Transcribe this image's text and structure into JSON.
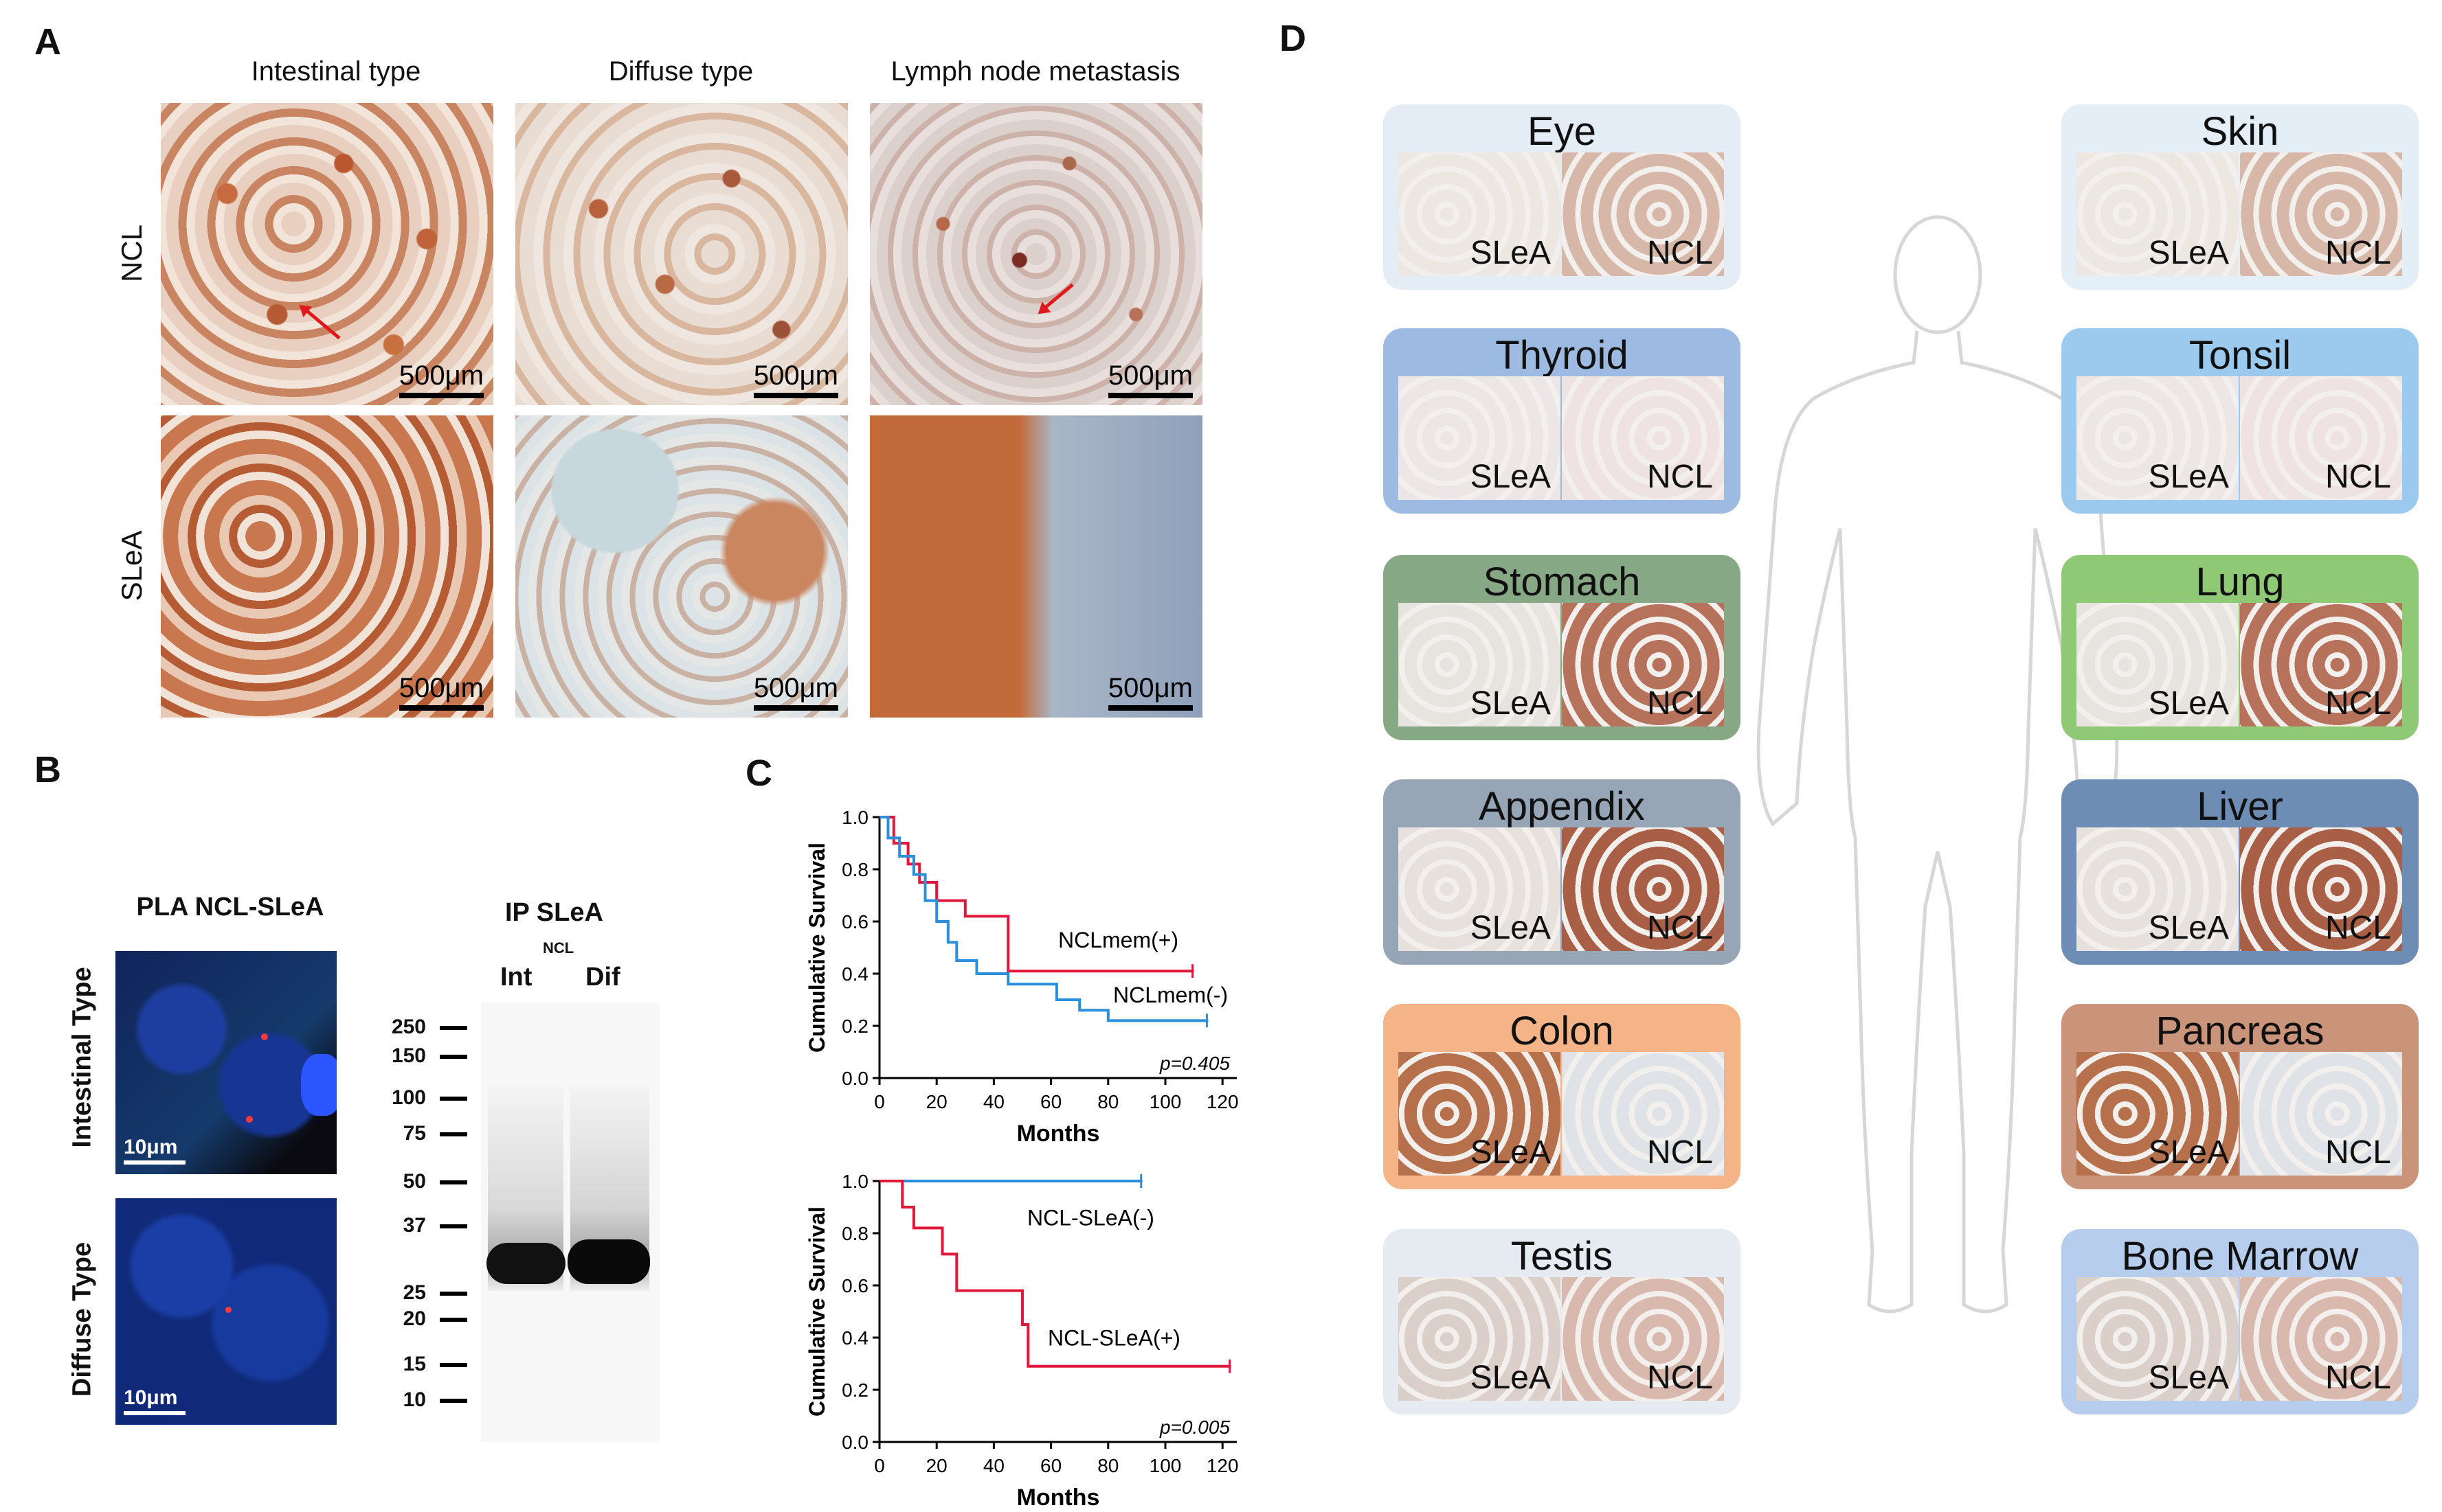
{
  "panelA": {
    "letter": "A",
    "columns": [
      "Intestinal type",
      "Diffuse type",
      "Lymph node metastasis"
    ],
    "rows": [
      "NCL",
      "SLeA"
    ],
    "scale_label": "500μm"
  },
  "panelB": {
    "letter": "B",
    "pla_title": "PLA NCL-SLeA",
    "rows": [
      "Intestinal Type",
      "Diffuse Type"
    ],
    "fluor_scale": "10μm",
    "ip_title": "IP SLeA",
    "ip_sub": "NCL",
    "lanes": [
      "Int",
      "Dif"
    ],
    "markers": [
      "250",
      "150",
      "100",
      "75",
      "50",
      "37",
      "25",
      "20",
      "15",
      "10"
    ]
  },
  "panelC": {
    "letter": "C",
    "chart_data": [
      {
        "type": "line",
        "xlabel": "Months",
        "ylabel": "Cumulative Survival",
        "xticks": [
          0,
          20,
          40,
          60,
          80,
          100,
          120
        ],
        "yticks": [
          "0.0",
          "0.2",
          "0.4",
          "0.6",
          "0.8",
          "1.0"
        ],
        "xlim": [
          0,
          125
        ],
        "ylim": [
          0,
          1.0
        ],
        "pvalue": "p=0.405",
        "series": [
          {
            "name": "NCLmem(+)",
            "color": "#e0193c",
            "x": [
              0,
              5,
              5,
              10,
              10,
              14,
              14,
              20,
              20,
              30,
              30,
              45,
              45,
              110
            ],
            "y": [
              1.0,
              1.0,
              0.9,
              0.9,
              0.82,
              0.82,
              0.75,
              0.75,
              0.68,
              0.68,
              0.62,
              0.62,
              0.41,
              0.41
            ]
          },
          {
            "name": "NCLmem(-)",
            "color": "#2b8fdb",
            "x": [
              0,
              3,
              3,
              7,
              7,
              12,
              12,
              16,
              16,
              20,
              20,
              24,
              24,
              27,
              27,
              34,
              34,
              45,
              45,
              62,
              62,
              70,
              70,
              80,
              80,
              115
            ],
            "y": [
              1.0,
              1.0,
              0.92,
              0.92,
              0.85,
              0.85,
              0.78,
              0.78,
              0.68,
              0.68,
              0.6,
              0.6,
              0.52,
              0.52,
              0.45,
              0.45,
              0.4,
              0.4,
              0.36,
              0.36,
              0.3,
              0.3,
              0.26,
              0.26,
              0.22,
              0.22
            ]
          }
        ]
      },
      {
        "type": "line",
        "xlabel": "Months",
        "ylabel": "Cumulative Survival",
        "xticks": [
          0,
          20,
          40,
          60,
          80,
          100,
          120
        ],
        "yticks": [
          "0.0",
          "0.2",
          "0.4",
          "0.6",
          "0.8",
          "1.0"
        ],
        "xlim": [
          0,
          125
        ],
        "ylim": [
          0,
          1.0
        ],
        "pvalue": "p=0.005",
        "series": [
          {
            "name": "NCL-SLeA(-)",
            "color": "#2b8fdb",
            "x": [
              0,
              92
            ],
            "y": [
              1.0,
              1.0
            ]
          },
          {
            "name": "NCL-SLeA(+)",
            "color": "#e0193c",
            "x": [
              0,
              8,
              8,
              12,
              12,
              22,
              22,
              27,
              27,
              50,
              50,
              52,
              52,
              123
            ],
            "y": [
              1.0,
              1.0,
              0.9,
              0.9,
              0.82,
              0.82,
              0.72,
              0.72,
              0.58,
              0.58,
              0.45,
              0.45,
              0.29,
              0.29
            ]
          }
        ]
      }
    ]
  },
  "panelD": {
    "letter": "D",
    "img_labels": [
      "SLeA",
      "NCL"
    ],
    "organs_left": [
      {
        "name": "Eye",
        "color": "#e4ecf6"
      },
      {
        "name": "Thyroid",
        "color": "#9dbbe2"
      },
      {
        "name": "Stomach",
        "color": "#87a884"
      },
      {
        "name": "Appendix",
        "color": "#97a6b6"
      },
      {
        "name": "Colon",
        "color": "#f5b487"
      },
      {
        "name": "Testis",
        "color": "#e5ebf1"
      }
    ],
    "organs_right": [
      {
        "name": "Skin",
        "color": "#e4eef6"
      },
      {
        "name": "Tonsil",
        "color": "#9ccaee"
      },
      {
        "name": "Lung",
        "color": "#8fc975"
      },
      {
        "name": "Liver",
        "color": "#6e8db5"
      },
      {
        "name": "Pancreas",
        "color": "#c99479"
      },
      {
        "name": "Bone Marrow",
        "color": "#b6cdee"
      }
    ]
  }
}
